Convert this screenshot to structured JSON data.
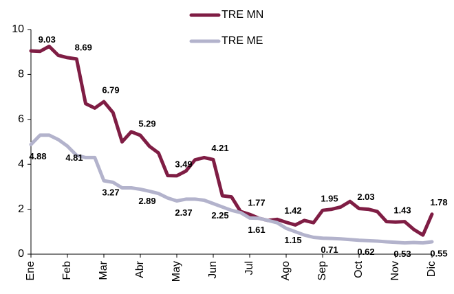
{
  "chart_data": {
    "type": "line",
    "categories": [
      "Ene",
      null,
      null,
      null,
      "Feb",
      null,
      null,
      null,
      "Mar",
      null,
      null,
      null,
      "Abr",
      null,
      null,
      null,
      "May",
      null,
      null,
      null,
      "Jun",
      null,
      null,
      null,
      "Jul",
      null,
      null,
      null,
      "Ago",
      null,
      null,
      null,
      "Sep",
      null,
      null,
      null,
      "Oct",
      null,
      null,
      null,
      "Nov",
      null,
      null,
      null,
      "Dic"
    ],
    "series": [
      {
        "name": "TRE MN",
        "color": "#7f1d44",
        "values": [
          9.05,
          9.03,
          9.25,
          8.85,
          8.75,
          8.69,
          6.7,
          6.5,
          6.79,
          6.3,
          5.0,
          5.45,
          5.29,
          4.8,
          4.5,
          3.5,
          3.49,
          3.7,
          4.2,
          4.3,
          4.21,
          2.6,
          2.55,
          1.9,
          1.77,
          1.6,
          1.5,
          1.55,
          1.42,
          1.3,
          1.5,
          1.4,
          1.95,
          2.0,
          2.1,
          2.35,
          2.03,
          2.0,
          1.9,
          1.45,
          1.43,
          1.45,
          1.1,
          0.85,
          1.78
        ],
        "value_labels": [
          null,
          "9.03",
          null,
          null,
          null,
          "8.69",
          null,
          null,
          "6.79",
          null,
          null,
          null,
          "5.29",
          null,
          null,
          null,
          "3.49",
          null,
          null,
          null,
          "4.21",
          null,
          null,
          null,
          "1.77",
          null,
          null,
          null,
          "1.42",
          null,
          null,
          null,
          "1.95",
          null,
          null,
          null,
          "2.03",
          null,
          null,
          null,
          "1.43",
          null,
          null,
          null,
          "1.78"
        ]
      },
      {
        "name": "TRE ME",
        "color": "#b3b3cc",
        "values": [
          4.88,
          5.3,
          5.3,
          5.1,
          4.81,
          4.4,
          4.3,
          4.3,
          3.27,
          3.2,
          2.95,
          2.95,
          2.89,
          2.8,
          2.7,
          2.5,
          2.37,
          2.45,
          2.45,
          2.4,
          2.25,
          2.1,
          1.95,
          1.85,
          1.61,
          1.6,
          1.5,
          1.4,
          1.15,
          1.0,
          0.85,
          0.75,
          0.71,
          0.7,
          0.68,
          0.65,
          0.62,
          0.6,
          0.58,
          0.55,
          0.53,
          0.5,
          0.52,
          0.5,
          0.55
        ],
        "value_labels": [
          "4.88",
          null,
          null,
          null,
          "4.81",
          null,
          null,
          null,
          "3.27",
          null,
          null,
          null,
          "2.89",
          null,
          null,
          null,
          "2.37",
          null,
          null,
          null,
          "2.25",
          null,
          null,
          null,
          "1.61",
          null,
          null,
          null,
          "1.15",
          null,
          null,
          null,
          "0.71",
          null,
          null,
          null,
          "0.62",
          null,
          null,
          null,
          "0.53",
          null,
          null,
          null,
          "0.55"
        ]
      }
    ],
    "ylim": [
      0,
      10
    ],
    "yticks": [
      0,
      2,
      4,
      6,
      8,
      10
    ]
  }
}
